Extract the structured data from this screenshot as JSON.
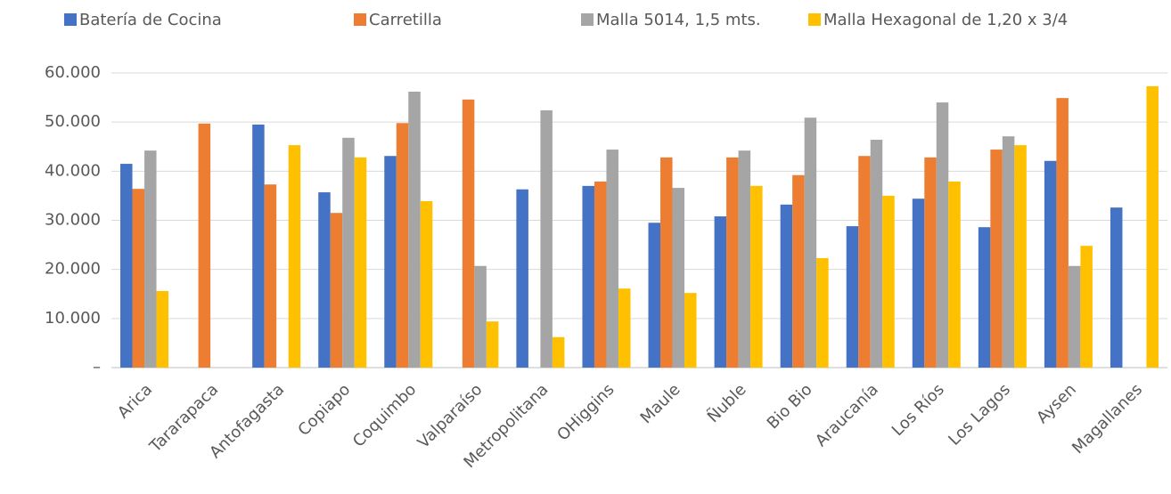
{
  "chart_data": {
    "type": "bar",
    "categories": [
      "Arica",
      "Tararapaca",
      "Antofagasta",
      "Copiapo",
      "Coquimbo",
      "Valparaíso",
      "Metropolitana",
      "OHiggins",
      "Maule",
      "Ñuble",
      "Bio Bio",
      "Araucanía",
      "Los Ríos",
      "Los Lagos",
      "Aysen",
      "Magallanes"
    ],
    "series": [
      {
        "name": "Batería de Cocina",
        "color": "#4472c4",
        "values": [
          41500,
          null,
          49500,
          35700,
          43100,
          null,
          36300,
          37000,
          29500,
          30800,
          33200,
          28800,
          34400,
          28600,
          42100,
          32600
        ]
      },
      {
        "name": "Carretilla",
        "color": "#ed7d31",
        "values": [
          36400,
          49700,
          37300,
          31500,
          49800,
          54600,
          null,
          37900,
          42800,
          42800,
          39200,
          43100,
          42800,
          44400,
          54900,
          null
        ]
      },
      {
        "name": "Malla 5014, 1,5 mts.",
        "color": "#a5a5a5",
        "values": [
          44200,
          null,
          null,
          46800,
          56200,
          20700,
          52400,
          44400,
          36600,
          44200,
          50900,
          46400,
          54000,
          47100,
          20700,
          null
        ]
      },
      {
        "name": "Malla Hexagonal de 1,20 x 3/4",
        "color": "#ffc000",
        "values": [
          15600,
          null,
          45300,
          42800,
          33900,
          9400,
          6200,
          16100,
          15200,
          37000,
          22300,
          35000,
          37900,
          45300,
          24800,
          57300
        ]
      }
    ],
    "ylim": [
      0,
      60000
    ],
    "yticks": [
      {
        "value": 0,
        "label": "–"
      },
      {
        "value": 10000,
        "label": "10.000"
      },
      {
        "value": 20000,
        "label": "20.000"
      },
      {
        "value": 30000,
        "label": "30.000"
      },
      {
        "value": 40000,
        "label": "40.000"
      },
      {
        "value": 50000,
        "label": "50.000"
      },
      {
        "value": 60000,
        "label": "60.000"
      }
    ],
    "grid": true
  }
}
